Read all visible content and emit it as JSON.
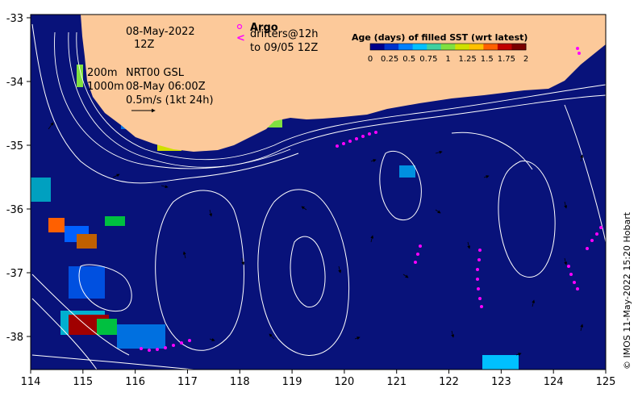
{
  "map": {
    "date_line": "08-May-2022",
    "time_line": "12Z",
    "nrt_label_a": "200m",
    "nrt_label_b": "NRT00 GSL",
    "nrt_label_c": "1000m",
    "nrt_label_d": "08-May 06:00Z",
    "scale_label": "0.5m/s (1kt 24h)",
    "argo_label": "Argo",
    "drifters_label": "drifters@12h",
    "drifters_to": "to 09/05 12Z",
    "credit": "© IMOS 11-May-2022 15:20 Hobart",
    "lon_ticks": [
      "114",
      "115",
      "116",
      "117",
      "118",
      "119",
      "120",
      "121",
      "122",
      "123",
      "124",
      "125"
    ],
    "lat_ticks": [
      "-33",
      "-34",
      "-35",
      "-36",
      "-37",
      "-38"
    ]
  },
  "legend": {
    "title": "Age (days) of filled SST (wrt latest)",
    "ticks": [
      "0",
      "0.25",
      "0.5",
      "0.75",
      "1",
      "1.25",
      "1.5",
      "1.75",
      "2"
    ],
    "colors": [
      "#00008b",
      "#0033cc",
      "#0080ff",
      "#00c0ff",
      "#40d0a0",
      "#80e040",
      "#d0e000",
      "#ffc000",
      "#ff6000",
      "#c00000",
      "#7a0000"
    ]
  },
  "colors": {
    "ocean": "#08127a",
    "land": "#fcc99a",
    "contour": "#ffffff",
    "drifter": "#ff00ff"
  }
}
